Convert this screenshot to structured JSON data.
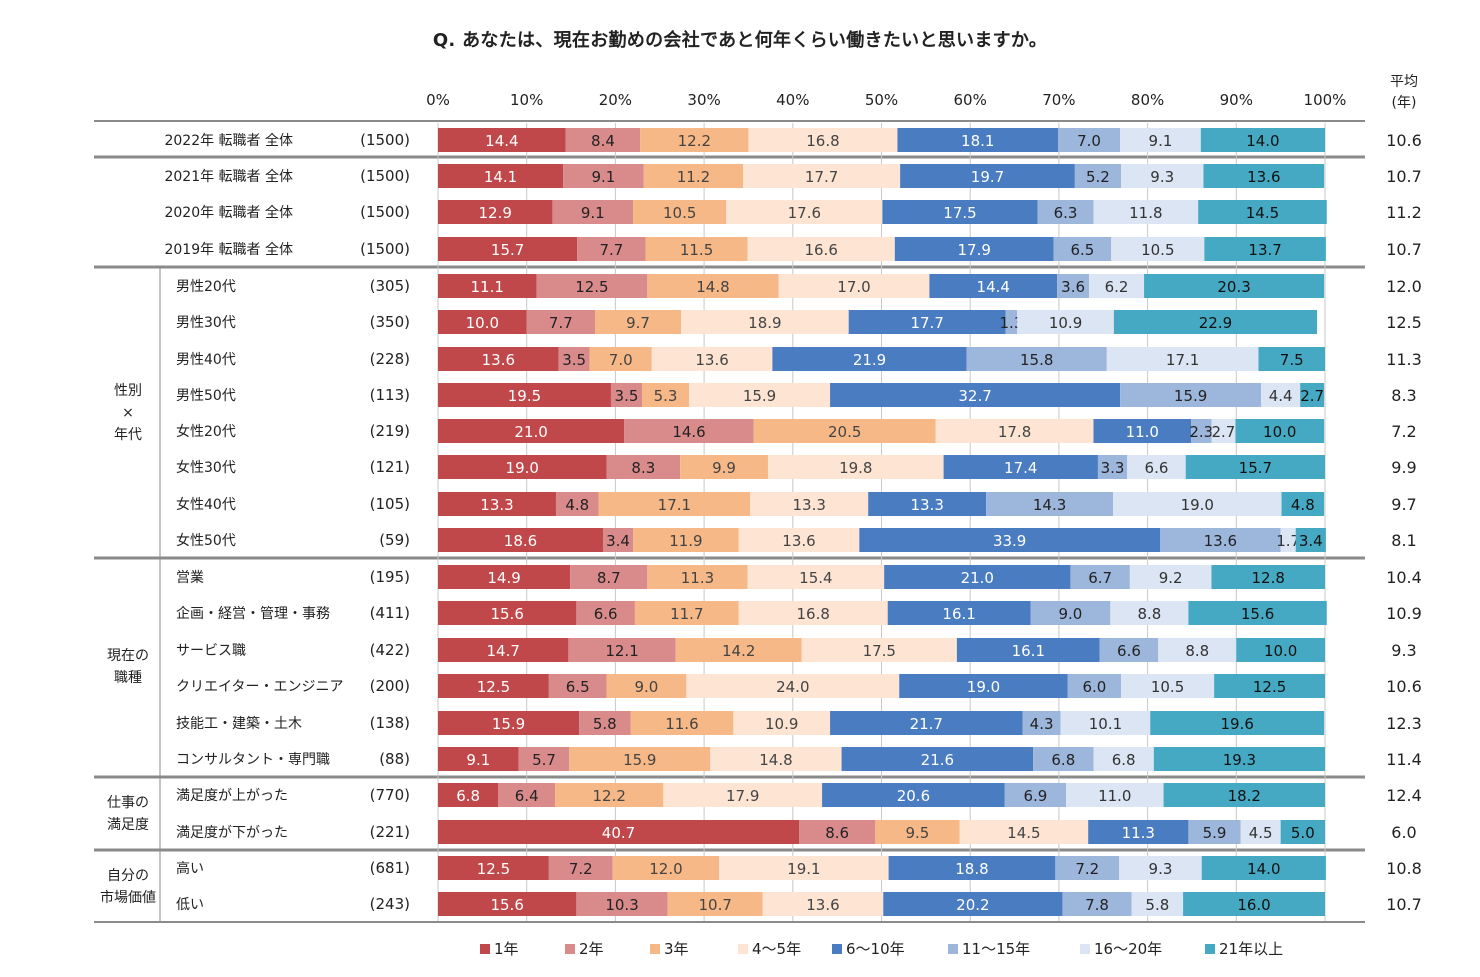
{
  "chart_data": {
    "type": "bar",
    "stacked": "percent",
    "orientation": "horizontal",
    "title": "Q.  あなたは、現在お勤めの会社であと何年くらい働きたいと思いますか。",
    "x_ticks": [
      "0%",
      "10%",
      "20%",
      "30%",
      "40%",
      "50%",
      "60%",
      "70%",
      "80%",
      "90%",
      "100%"
    ],
    "xlim": [
      0,
      100
    ],
    "average_header": [
      "平均",
      "(年)"
    ],
    "legend_position": "bottom",
    "series": [
      {
        "name": "1年",
        "color": "#c0484a"
      },
      {
        "name": "2年",
        "color": "#d98b8c"
      },
      {
        "name": "3年",
        "color": "#f6b886"
      },
      {
        "name": "4～5年",
        "color": "#fde4d3"
      },
      {
        "name": "6～10年",
        "color": "#4a7cc2"
      },
      {
        "name": "11～15年",
        "color": "#9db6dc"
      },
      {
        "name": "16～20年",
        "color": "#dbe5f3"
      },
      {
        "name": "21年以上",
        "color": "#45a9c3"
      }
    ],
    "groups": [
      {
        "label": [],
        "rows": [
          0
        ]
      },
      {
        "label": [],
        "rows": [
          1,
          2,
          3
        ]
      },
      {
        "label": [
          "性別",
          "×",
          "年代"
        ],
        "rows": [
          4,
          5,
          6,
          7,
          8,
          9,
          10,
          11
        ]
      },
      {
        "label": [
          "現在の",
          "職種"
        ],
        "rows": [
          12,
          13,
          14,
          15,
          16,
          17
        ]
      },
      {
        "label": [
          "仕事の",
          "満足度"
        ],
        "rows": [
          18,
          19
        ]
      },
      {
        "label": [
          "自分の",
          "市場価値"
        ],
        "rows": [
          20,
          21
        ]
      }
    ],
    "rows": [
      {
        "label": "2022年 転職者 全体",
        "n": "(1500)",
        "values": [
          14.4,
          8.4,
          12.2,
          16.8,
          18.1,
          7.0,
          9.1,
          14.0
        ],
        "avg": "10.6"
      },
      {
        "label": "2021年 転職者 全体",
        "n": "(1500)",
        "values": [
          14.1,
          9.1,
          11.2,
          17.7,
          19.7,
          5.2,
          9.3,
          13.6
        ],
        "avg": "10.7"
      },
      {
        "label": "2020年 転職者 全体",
        "n": "(1500)",
        "values": [
          12.9,
          9.1,
          10.5,
          17.6,
          17.5,
          6.3,
          11.8,
          14.5
        ],
        "avg": "11.2"
      },
      {
        "label": "2019年 転職者 全体",
        "n": "(1500)",
        "values": [
          15.7,
          7.7,
          11.5,
          16.6,
          17.9,
          6.5,
          10.5,
          13.7
        ],
        "avg": "10.7"
      },
      {
        "label": "男性20代",
        "n": "(305)",
        "values": [
          11.1,
          12.5,
          14.8,
          17.0,
          14.4,
          3.6,
          6.2,
          20.3
        ],
        "avg": "12.0"
      },
      {
        "label": "男性30代",
        "n": "(350)",
        "values": [
          10.0,
          7.7,
          9.7,
          18.9,
          17.7,
          1.3,
          10.9,
          22.9
        ],
        "avg": "12.5"
      },
      {
        "label": "男性40代",
        "n": "(228)",
        "values": [
          13.6,
          3.5,
          7.0,
          13.6,
          21.9,
          15.8,
          17.1,
          7.5
        ],
        "avg": "11.3"
      },
      {
        "label": "男性50代",
        "n": "(113)",
        "values": [
          19.5,
          3.5,
          5.3,
          15.9,
          32.7,
          15.9,
          4.4,
          2.7
        ],
        "avg": "8.3"
      },
      {
        "label": "女性20代",
        "n": "(219)",
        "values": [
          21.0,
          14.6,
          20.5,
          17.8,
          11.0,
          2.3,
          2.7,
          10.0
        ],
        "avg": "7.2"
      },
      {
        "label": "女性30代",
        "n": "(121)",
        "values": [
          19.0,
          8.3,
          9.9,
          19.8,
          17.4,
          3.3,
          6.6,
          15.7
        ],
        "avg": "9.9"
      },
      {
        "label": "女性40代",
        "n": "(105)",
        "values": [
          13.3,
          4.8,
          17.1,
          13.3,
          13.3,
          14.3,
          19.0,
          4.8
        ],
        "avg": "9.7"
      },
      {
        "label": "女性50代",
        "n": "(59)",
        "values": [
          18.6,
          3.4,
          11.9,
          13.6,
          33.9,
          13.6,
          1.7,
          3.4
        ],
        "avg": "8.1"
      },
      {
        "label": "営業",
        "n": "(195)",
        "values": [
          14.9,
          8.7,
          11.3,
          15.4,
          21.0,
          6.7,
          9.2,
          12.8
        ],
        "avg": "10.4"
      },
      {
        "label": "企画・経営・管理・事務",
        "n": "(411)",
        "values": [
          15.6,
          6.6,
          11.7,
          16.8,
          16.1,
          9.0,
          8.8,
          15.6
        ],
        "avg": "10.9"
      },
      {
        "label": "サービス職",
        "n": "(422)",
        "values": [
          14.7,
          12.1,
          14.2,
          17.5,
          16.1,
          6.6,
          8.8,
          10.0
        ],
        "avg": "9.3"
      },
      {
        "label": "クリエイター・エンジニア",
        "n": "(200)",
        "values": [
          12.5,
          6.5,
          9.0,
          24.0,
          19.0,
          6.0,
          10.5,
          12.5
        ],
        "avg": "10.6"
      },
      {
        "label": "技能工・建築・土木",
        "n": "(138)",
        "values": [
          15.9,
          5.8,
          11.6,
          10.9,
          21.7,
          4.3,
          10.1,
          19.6
        ],
        "avg": "12.3"
      },
      {
        "label": "コンサルタント・専門職",
        "n": "(88)",
        "values": [
          9.1,
          5.7,
          15.9,
          14.8,
          21.6,
          6.8,
          6.8,
          19.3
        ],
        "avg": "11.4"
      },
      {
        "label": "満足度が上がった",
        "n": "(770)",
        "values": [
          6.8,
          6.4,
          12.2,
          17.9,
          20.6,
          6.9,
          11.0,
          18.2
        ],
        "avg": "12.4"
      },
      {
        "label": "満足度が下がった",
        "n": "(221)",
        "values": [
          40.7,
          8.6,
          9.5,
          14.5,
          11.3,
          5.9,
          4.5,
          5.0
        ],
        "avg": "6.0"
      },
      {
        "label": "高い",
        "n": "(681)",
        "values": [
          12.5,
          7.2,
          12.0,
          19.1,
          18.8,
          7.2,
          9.3,
          14.0
        ],
        "avg": "10.8"
      },
      {
        "label": "低い",
        "n": "(243)",
        "values": [
          15.6,
          10.3,
          10.7,
          13.6,
          20.2,
          7.8,
          5.8,
          16.0
        ],
        "avg": "10.7"
      }
    ]
  }
}
